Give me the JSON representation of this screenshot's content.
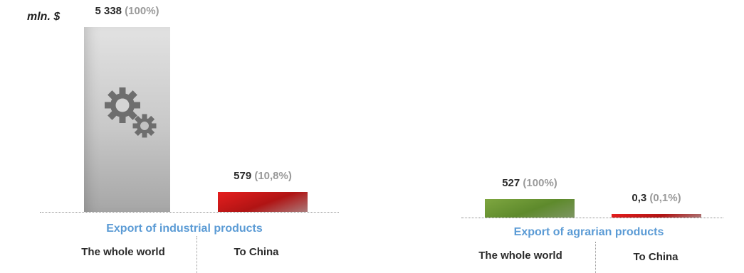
{
  "unit_label": "mln. $",
  "chart_data": [
    {
      "type": "bar",
      "title": "Export of industrial products",
      "categories": [
        "The whole world",
        "To China"
      ],
      "values": [
        5338,
        579
      ],
      "value_labels": [
        "5 338",
        "579"
      ],
      "share_labels": [
        "(100%)",
        "(10,8%)"
      ],
      "ylabel": "mln. $",
      "ylim": [
        0,
        5500
      ],
      "grid": false,
      "colors": [
        "#c8c8c8",
        "#c81818"
      ],
      "icon": "gears-icon"
    },
    {
      "type": "bar",
      "title": "Export of agrarian products",
      "categories": [
        "The whole world",
        "To China"
      ],
      "values": [
        527,
        0.3
      ],
      "value_labels": [
        "527",
        "0,3"
      ],
      "share_labels": [
        "(100%)",
        "(0,1%)"
      ],
      "ylim": [
        0,
        5500
      ],
      "grid": false,
      "colors": [
        "#6a9632",
        "#c81818"
      ]
    }
  ]
}
